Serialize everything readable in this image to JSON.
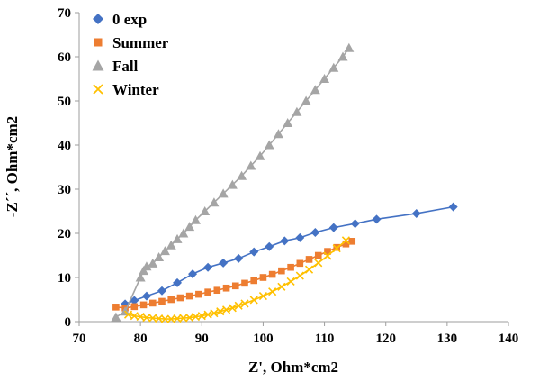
{
  "chart_data": {
    "type": "scatter",
    "title": "",
    "xlabel": "Z', Ohm*cm2",
    "ylabel": "-Z´´, Ohm*cm2",
    "xlim": [
      70,
      140
    ],
    "ylim": [
      0,
      70
    ],
    "xticks": [
      70,
      80,
      90,
      100,
      110,
      120,
      130,
      140
    ],
    "yticks": [
      0,
      10,
      20,
      30,
      40,
      50,
      60,
      70
    ],
    "grid": false,
    "legend_position": "top-left",
    "axis_color": "#9e9e9e",
    "series": [
      {
        "name": "0 exp",
        "color": "#4472C4",
        "marker": "diamond",
        "points": [
          [
            77.5,
            4
          ],
          [
            79,
            4.8
          ],
          [
            81,
            5.8
          ],
          [
            83.5,
            7
          ],
          [
            86,
            8.8
          ],
          [
            88.5,
            10.8
          ],
          [
            91,
            12.3
          ],
          [
            93.5,
            13.3
          ],
          [
            96,
            14.3
          ],
          [
            98.5,
            15.8
          ],
          [
            101,
            17
          ],
          [
            103.5,
            18.3
          ],
          [
            106,
            19
          ],
          [
            108.5,
            20.2
          ],
          [
            111.5,
            21.3
          ],
          [
            115,
            22.2
          ],
          [
            118.5,
            23.2
          ],
          [
            125,
            24.5
          ],
          [
            131,
            26
          ]
        ]
      },
      {
        "name": "Summer",
        "color": "#ED7D31",
        "marker": "square",
        "points": [
          [
            76,
            3.3
          ],
          [
            77.5,
            3.1
          ],
          [
            79,
            3.4
          ],
          [
            80.5,
            3.8
          ],
          [
            82,
            4.2
          ],
          [
            83.5,
            4.6
          ],
          [
            85,
            5
          ],
          [
            86.5,
            5.4
          ],
          [
            88,
            5.8
          ],
          [
            89.5,
            6.2
          ],
          [
            91,
            6.7
          ],
          [
            92.5,
            7.1
          ],
          [
            94,
            7.6
          ],
          [
            95.5,
            8.1
          ],
          [
            97,
            8.7
          ],
          [
            98.5,
            9.3
          ],
          [
            100,
            10
          ],
          [
            101.5,
            10.7
          ],
          [
            103,
            11.5
          ],
          [
            104.5,
            12.3
          ],
          [
            106,
            13.2
          ],
          [
            107.5,
            14.1
          ],
          [
            109,
            15
          ],
          [
            110.5,
            15.9
          ],
          [
            112,
            16.8
          ],
          [
            113.5,
            17.6
          ],
          [
            114.5,
            18.2
          ]
        ]
      },
      {
        "name": "Fall",
        "color": "#A5A5A5",
        "marker": "triangle",
        "points": [
          [
            76,
            1
          ],
          [
            77.5,
            2.3
          ],
          [
            80,
            10
          ],
          [
            80.5,
            11.5
          ],
          [
            81,
            12.5
          ],
          [
            82,
            13.2
          ],
          [
            83,
            14.6
          ],
          [
            84,
            16
          ],
          [
            85,
            17.3
          ],
          [
            86,
            18.7
          ],
          [
            87,
            20
          ],
          [
            88,
            21.5
          ],
          [
            89,
            23
          ],
          [
            90.5,
            25
          ],
          [
            92,
            27
          ],
          [
            93.5,
            29
          ],
          [
            95,
            31
          ],
          [
            96.5,
            33
          ],
          [
            98,
            35.3
          ],
          [
            99.5,
            37.5
          ],
          [
            101,
            40
          ],
          [
            102.5,
            42.5
          ],
          [
            104,
            45
          ],
          [
            105.5,
            47.5
          ],
          [
            107,
            50
          ],
          [
            108.5,
            52.5
          ],
          [
            110,
            55
          ],
          [
            111.5,
            57.5
          ],
          [
            113,
            60
          ],
          [
            114,
            62
          ]
        ]
      },
      {
        "name": "Winter",
        "color": "#FFC000",
        "marker": "x",
        "points": [
          [
            78,
            1.6
          ],
          [
            79,
            1.3
          ],
          [
            80,
            1.1
          ],
          [
            81,
            0.9
          ],
          [
            82,
            0.8
          ],
          [
            83,
            0.7
          ],
          [
            84,
            0.6
          ],
          [
            85,
            0.6
          ],
          [
            86,
            0.7
          ],
          [
            87,
            0.8
          ],
          [
            88,
            0.9
          ],
          [
            89,
            1.1
          ],
          [
            90,
            1.3
          ],
          [
            91,
            1.6
          ],
          [
            92,
            1.9
          ],
          [
            93,
            2.3
          ],
          [
            94,
            2.7
          ],
          [
            95,
            3.1
          ],
          [
            96,
            3.6
          ],
          [
            97,
            4.1
          ],
          [
            98.5,
            4.9
          ],
          [
            100,
            5.8
          ],
          [
            101.5,
            6.8
          ],
          [
            103,
            7.9
          ],
          [
            104.5,
            9.1
          ],
          [
            106,
            10.4
          ],
          [
            107.5,
            11.8
          ],
          [
            109,
            13.3
          ],
          [
            110.5,
            14.9
          ],
          [
            112,
            16.6
          ],
          [
            113.5,
            18.4
          ]
        ]
      }
    ]
  }
}
